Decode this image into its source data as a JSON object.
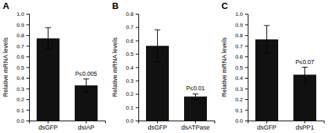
{
  "chart_data": [
    {
      "type": "bar",
      "title": "A",
      "ylabel": "Relative mRNA levels",
      "categories": [
        "dsGFP",
        "dsIAP"
      ],
      "values": [
        0.77,
        0.33
      ],
      "errors": [
        0.1,
        0.06
      ],
      "color": "#111111",
      "ylim": [
        0.0,
        1.0
      ],
      "yticks": [
        {
          "value": 0.0,
          "label": "0.0"
        },
        0.1,
        0.2,
        0.3,
        0.4,
        0.5,
        0.6,
        0.7,
        0.8,
        0.9,
        {
          "value": 1.0,
          "label": "1.0"
        }
      ],
      "annotations": [
        "P≤0.005"
      ]
    },
    {
      "type": "bar",
      "title": "B",
      "ylabel": "Relative mRNA levels",
      "categories": [
        "dsGFP",
        "dsATPase"
      ],
      "values": [
        0.56,
        0.18
      ],
      "errors": [
        0.12,
        0.02
      ],
      "color": "#111111",
      "ylim": [
        0.0,
        0.8
      ],
      "yticks": [
        {
          "value": 0.0,
          "label": "0.0"
        },
        0.1,
        0.2,
        0.3,
        0.4,
        0.5,
        0.6,
        0.7,
        0.8
      ],
      "annotations": [
        "P≤0.01"
      ]
    },
    {
      "type": "bar",
      "title": "C",
      "ylabel": "Relative mRNA levels",
      "categories": [
        "dsGFP",
        "dsPP1"
      ],
      "values": [
        0.76,
        0.43
      ],
      "errors": [
        0.13,
        0.07
      ],
      "color": "#111111",
      "ylim": [
        0.0,
        1.0
      ],
      "yticks": [
        {
          "value": 0.0,
          "label": "0.0"
        },
        0.1,
        0.2,
        0.3,
        0.4,
        0.5,
        0.6,
        0.7,
        0.8,
        0.9,
        {
          "value": 1.0,
          "label": "1.0"
        }
      ],
      "annotations": [
        "P≤0.07"
      ]
    }
  ]
}
